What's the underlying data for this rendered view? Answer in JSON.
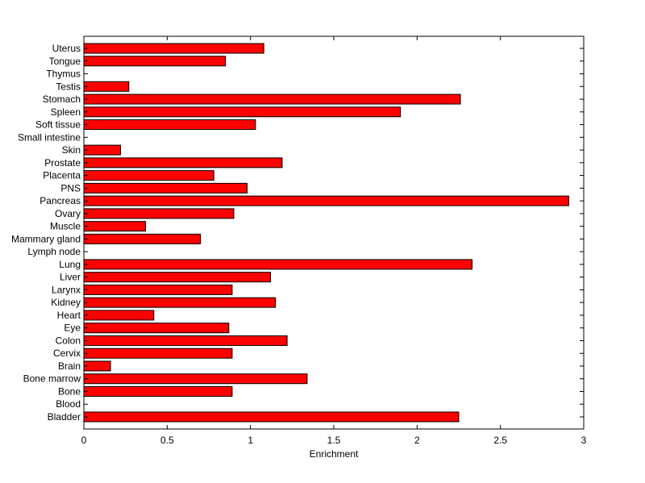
{
  "chart_data": {
    "type": "bar",
    "orientation": "horizontal",
    "title": "",
    "xlabel": "Enrichment",
    "ylabel": "",
    "xlim": [
      0,
      3
    ],
    "xticks": [
      "0",
      "0.5",
      "1",
      "1.5",
      "2",
      "2.5",
      "3"
    ],
    "grid": false,
    "bar_color": "#ff0000",
    "bar_edge_color": "#000000",
    "categories": [
      "Bladder",
      "Blood",
      "Bone",
      "Bone marrow",
      "Brain",
      "Cervix",
      "Colon",
      "Eye",
      "Heart",
      "Kidney",
      "Larynx",
      "Liver",
      "Lung",
      "Lymph node",
      "Mammary gland",
      "Muscle",
      "Ovary",
      "Pancreas",
      "PNS",
      "Placenta",
      "Prostate",
      "Skin",
      "Small intestine",
      "Soft tissue",
      "Spleen",
      "Stomach",
      "Testis",
      "Thymus",
      "Tongue",
      "Uterus"
    ],
    "values": [
      2.25,
      0,
      0.89,
      1.34,
      0.16,
      0.89,
      1.22,
      0.87,
      0.42,
      1.15,
      0.89,
      1.12,
      2.33,
      0,
      0.7,
      0.37,
      0.9,
      2.91,
      0.98,
      0.78,
      1.19,
      0.22,
      0,
      1.03,
      1.9,
      2.26,
      0.27,
      0,
      0.85,
      1.08
    ]
  }
}
